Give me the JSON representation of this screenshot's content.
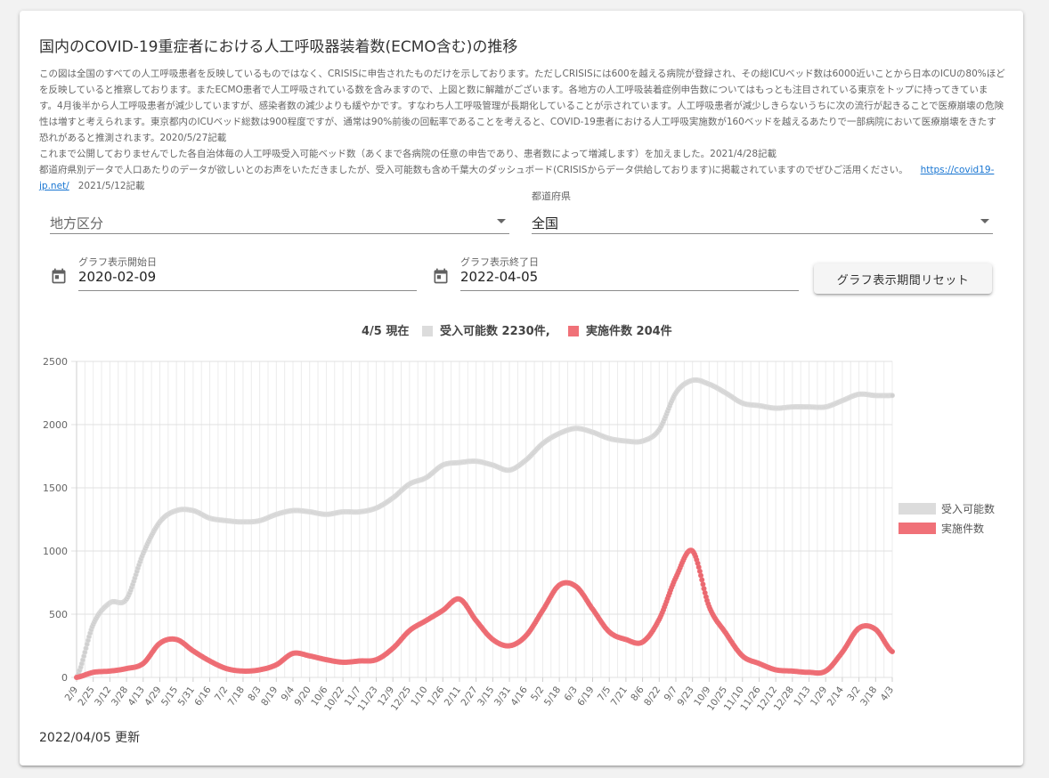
{
  "page": {
    "title": "国内のCOVID-19重症者における人工呼吸器装着数(ECMO含む)の推移",
    "description": [
      "この図は全国のすべての人工呼吸患者を反映しているものではなく、CRISISに申告されたものだけを示しております。ただしCRISISには600を越える病院が登録され、その総ICUベッド数は6000近いことから日本のICUの80%ほどを反映していると推察しております。またECMO患者で人工呼吸されている数を含みますので、上図と数に解離がございます。各地方の人工呼吸装着症例申告数についてはもっとも注目されている東京をトップに持ってきています。4月後半から人工呼吸患者が減少していますが、感染者数の減少よりも緩やかです。すなわち人工呼吸管理が長期化していることが示されています。人工呼吸患者が減少しきらないうちに次の流行が起きることで医療崩壊の危険性は増すと考えられます。東京都内のICUベッド総数は900程度ですが、通常は90%前後の回転率であることを考えると、COVID-19患者における人工呼吸実施数が160ベッドを越えるあたりで一部病院において医療崩壊をきたす恐れがあると推測されます。2020/5/27記載",
      "これまで公開しておりませんでした各自治体毎の人工呼吸受入可能ベッド数（あくまで各病院の任意の申告であり、患者数によって増減します）を加えました。2021/4/28記載",
      "都道府県別データで人口あたりのデータが欲しいとのお声をいただきましたが、受入可能数も含め千葉大のダッシュボード(CRISISからデータ供給しております)に掲載されていますのでぜひご活用ください。"
    ],
    "link_text": "https://covid19-jp.net/",
    "link_note": "2021/5/12記載",
    "updated": "2022/04/05 更新"
  },
  "filters": {
    "region_placeholder": "地方区分",
    "prefecture_label": "都道府県",
    "prefecture_value": "全国",
    "start_label": "グラフ表示開始日",
    "start_value": "2020-02-09",
    "end_label": "グラフ表示終了日",
    "end_value": "2022-04-05",
    "reset_button": "グラフ表示期間リセット"
  },
  "colors": {
    "capacity": "#dcdcdc",
    "capacity_point": "#cfcfcf",
    "actual": "#f07178",
    "actual_point": "#e8676e"
  },
  "chart_data": {
    "type": "line",
    "title_parts": {
      "current": "4/5 現在",
      "capacity": "受入可能数 2230件,",
      "actual": "実施件数 204件"
    },
    "ylim": [
      0,
      2500
    ],
    "yticks": [
      0,
      500,
      1000,
      1500,
      2000,
      2500
    ],
    "categories": [
      "2/9",
      "2/25",
      "3/12",
      "3/28",
      "4/13",
      "4/29",
      "5/15",
      "5/31",
      "6/16",
      "7/2",
      "7/18",
      "8/3",
      "8/19",
      "9/4",
      "9/20",
      "10/6",
      "10/22",
      "11/7",
      "11/23",
      "12/9",
      "12/25",
      "1/10",
      "1/26",
      "2/11",
      "2/27",
      "3/15",
      "3/31",
      "4/16",
      "5/2",
      "5/18",
      "6/3",
      "6/19",
      "7/5",
      "7/21",
      "8/6",
      "8/22",
      "9/7",
      "9/23",
      "10/9",
      "10/25",
      "11/10",
      "11/26",
      "12/12",
      "12/28",
      "1/13",
      "1/29",
      "2/14",
      "3/2",
      "3/18",
      "4/3"
    ],
    "series": [
      {
        "name": "受入可能数",
        "values": [
          0,
          420,
          590,
          620,
          980,
          1230,
          1320,
          1320,
          1260,
          1240,
          1230,
          1240,
          1290,
          1320,
          1310,
          1290,
          1310,
          1310,
          1340,
          1420,
          1530,
          1580,
          1680,
          1700,
          1710,
          1680,
          1640,
          1720,
          1850,
          1930,
          1970,
          1940,
          1890,
          1870,
          1870,
          1960,
          2250,
          2350,
          2320,
          2250,
          2170,
          2150,
          2130,
          2140,
          2140,
          2140,
          2190,
          2240,
          2230,
          2230
        ]
      },
      {
        "name": "実施件数",
        "values": [
          0,
          40,
          50,
          70,
          110,
          270,
          300,
          210,
          130,
          70,
          50,
          60,
          100,
          190,
          170,
          140,
          120,
          130,
          140,
          230,
          370,
          450,
          530,
          620,
          450,
          300,
          250,
          330,
          530,
          730,
          720,
          540,
          360,
          300,
          280,
          460,
          790,
          1000,
          560,
          350,
          170,
          110,
          60,
          50,
          40,
          50,
          200,
          390,
          380,
          204
        ]
      }
    ],
    "legend_position": "right",
    "grid": true
  }
}
